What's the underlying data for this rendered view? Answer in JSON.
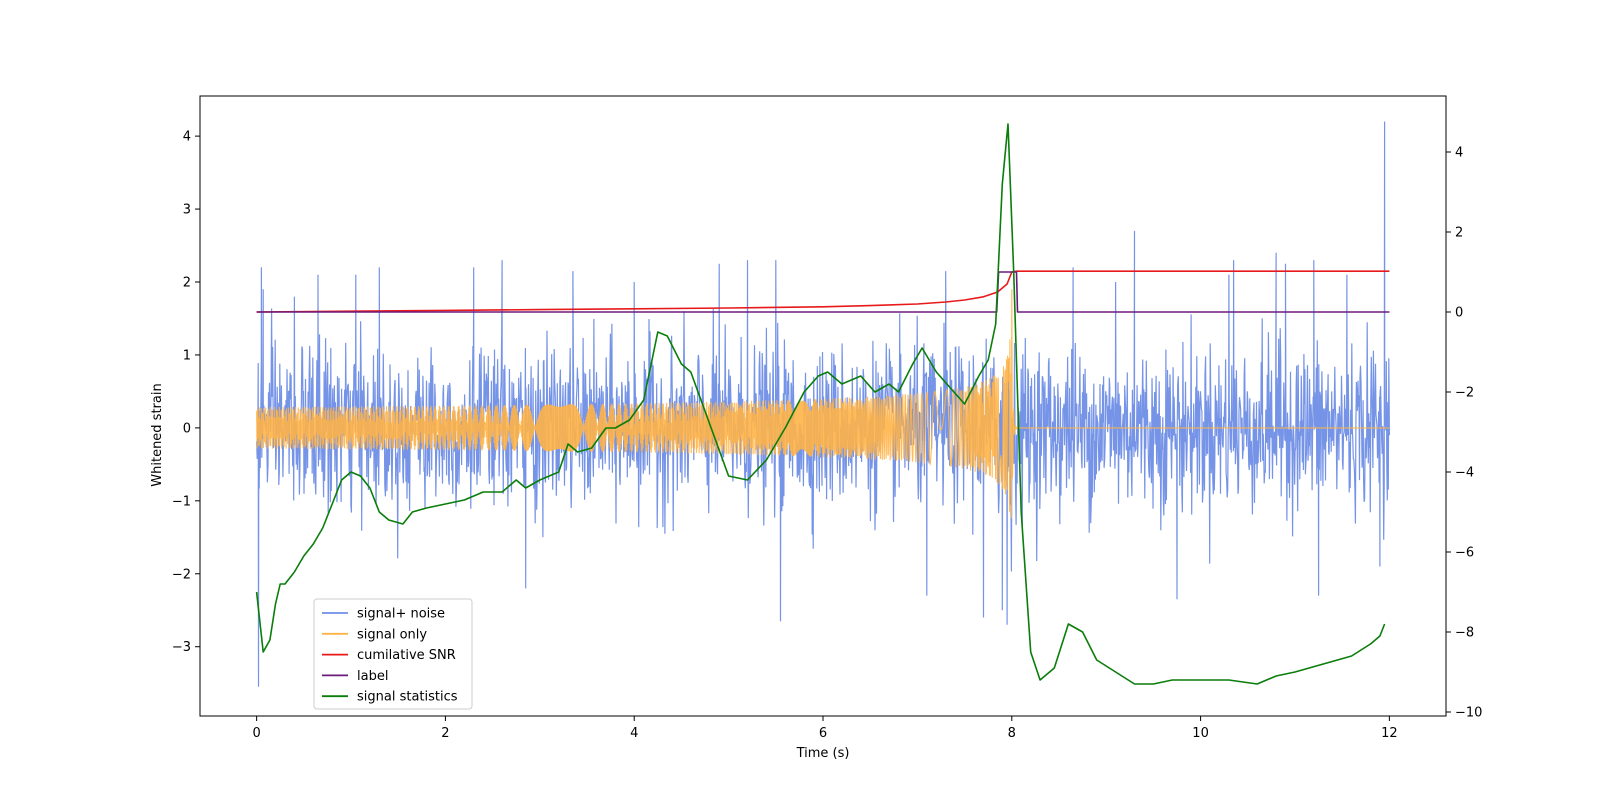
{
  "chart_data": {
    "type": "line",
    "title": "",
    "xlabel": "Time (s)",
    "ylabel": "Whitened strain",
    "y2label": "",
    "xlim": [
      -0.6,
      12.6
    ],
    "ylim": [
      -3.95,
      4.55
    ],
    "y2lim": [
      -10.1,
      5.4
    ],
    "x_ticks": [
      0,
      2,
      4,
      6,
      8,
      10,
      12
    ],
    "x_tick_labels": [
      "0",
      "2",
      "4",
      "6",
      "8",
      "10",
      "12"
    ],
    "y_ticks": [
      -3,
      -2,
      -1,
      0,
      1,
      2,
      3,
      4
    ],
    "y_tick_labels": [
      "−3",
      "−2",
      "−1",
      "0",
      "1",
      "2",
      "3",
      "4"
    ],
    "y2_ticks": [
      -10,
      -8,
      -6,
      -4,
      -2,
      0,
      2,
      4
    ],
    "y2_tick_labels": [
      "−10",
      "−8",
      "−6",
      "−4",
      "−2",
      "0",
      "2",
      "4"
    ],
    "grid": false,
    "legend_position": "lower-left",
    "series": [
      {
        "name": "signal+ noise",
        "axis": "left",
        "color": "#6f8ee6",
        "description_only": false,
        "noise": {
          "x_start": 0,
          "x_end": 12,
          "typical_peak": 1.6,
          "std": 0.55
        },
        "spikes": [
          {
            "x": 0.02,
            "y": -3.55
          },
          {
            "x": 0.05,
            "y": 2.2
          },
          {
            "x": 0.07,
            "y": 1.9
          },
          {
            "x": 0.4,
            "y": 1.8
          },
          {
            "x": 0.65,
            "y": 2.1
          },
          {
            "x": 1.05,
            "y": 2.1
          },
          {
            "x": 1.3,
            "y": 2.2
          },
          {
            "x": 2.3,
            "y": 2.2
          },
          {
            "x": 2.6,
            "y": 2.3
          },
          {
            "x": 2.85,
            "y": -2.2
          },
          {
            "x": 3.35,
            "y": 2.15
          },
          {
            "x": 4.0,
            "y": 2.0
          },
          {
            "x": 4.9,
            "y": 2.25
          },
          {
            "x": 5.2,
            "y": 2.3
          },
          {
            "x": 5.5,
            "y": 2.3
          },
          {
            "x": 5.55,
            "y": -2.65
          },
          {
            "x": 7.3,
            "y": 2.15
          },
          {
            "x": 7.1,
            "y": -2.3
          },
          {
            "x": 7.7,
            "y": -2.6
          },
          {
            "x": 7.9,
            "y": -2.5
          },
          {
            "x": 7.95,
            "y": -2.7
          },
          {
            "x": 8.65,
            "y": 2.2
          },
          {
            "x": 9.1,
            "y": 2.0
          },
          {
            "x": 9.3,
            "y": 2.7
          },
          {
            "x": 9.75,
            "y": -2.35
          },
          {
            "x": 10.3,
            "y": 2.1
          },
          {
            "x": 10.35,
            "y": 2.3
          },
          {
            "x": 10.8,
            "y": 2.4
          },
          {
            "x": 10.9,
            "y": 2.25
          },
          {
            "x": 11.2,
            "y": 2.3
          },
          {
            "x": 11.25,
            "y": -2.3
          },
          {
            "x": 11.55,
            "y": 2.1
          },
          {
            "x": 11.95,
            "y": 4.2
          },
          {
            "x": 11.9,
            "y": -1.9
          }
        ]
      },
      {
        "name": "signal only",
        "axis": "left",
        "color": "#ffb347",
        "chirp": {
          "x_start": 0,
          "x_merge": 8.0,
          "x_end": 12,
          "peak_amplitude": 1.9
        }
      },
      {
        "name": "cumilative SNR",
        "axis": "right",
        "color": "#e8191a",
        "x": [
          0,
          1,
          2,
          3,
          4,
          5,
          6,
          6.5,
          7,
          7.3,
          7.5,
          7.7,
          7.85,
          7.95,
          8.0,
          8.05,
          9,
          10,
          11,
          12
        ],
        "y": [
          0.0,
          0.02,
          0.04,
          0.06,
          0.08,
          0.1,
          0.13,
          0.16,
          0.2,
          0.25,
          0.3,
          0.38,
          0.5,
          0.7,
          1.0,
          1.02,
          1.02,
          1.02,
          1.02,
          1.02
        ]
      },
      {
        "name": "label",
        "axis": "right",
        "color": "#6a1b7a",
        "x": [
          0,
          7.84,
          7.86,
          8.05,
          8.06,
          12
        ],
        "y": [
          0,
          0,
          1.0,
          1.0,
          0,
          0
        ]
      },
      {
        "name": "signal statistics",
        "axis": "right",
        "color": "#0a7d0a",
        "x": [
          0.0,
          0.07,
          0.14,
          0.2,
          0.25,
          0.3,
          0.4,
          0.5,
          0.6,
          0.7,
          0.8,
          0.9,
          1.0,
          1.1,
          1.2,
          1.3,
          1.4,
          1.55,
          1.65,
          1.8,
          2.0,
          2.2,
          2.4,
          2.6,
          2.75,
          2.85,
          3.0,
          3.2,
          3.3,
          3.4,
          3.55,
          3.7,
          3.8,
          3.95,
          4.1,
          4.25,
          4.35,
          4.5,
          4.6,
          4.8,
          5.0,
          5.2,
          5.4,
          5.6,
          5.8,
          5.95,
          6.05,
          6.2,
          6.4,
          6.55,
          6.7,
          6.8,
          6.95,
          7.05,
          7.2,
          7.35,
          7.5,
          7.65,
          7.75,
          7.83,
          7.9,
          7.96,
          8.02,
          8.1,
          8.2,
          8.3,
          8.45,
          8.6,
          8.75,
          8.9,
          9.1,
          9.3,
          9.5,
          9.7,
          10.0,
          10.3,
          10.6,
          10.8,
          11.0,
          11.3,
          11.6,
          11.8,
          11.9,
          11.95
        ],
        "y": [
          -7.0,
          -8.5,
          -8.2,
          -7.3,
          -6.8,
          -6.8,
          -6.5,
          -6.1,
          -5.8,
          -5.4,
          -4.8,
          -4.2,
          -4.0,
          -4.1,
          -4.4,
          -5.0,
          -5.2,
          -5.3,
          -5.0,
          -4.9,
          -4.8,
          -4.7,
          -4.5,
          -4.5,
          -4.2,
          -4.4,
          -4.2,
          -4.0,
          -3.3,
          -3.5,
          -3.4,
          -2.9,
          -2.9,
          -2.7,
          -2.2,
          -0.5,
          -0.6,
          -1.3,
          -1.5,
          -2.8,
          -4.1,
          -4.2,
          -3.7,
          -2.9,
          -2.0,
          -1.6,
          -1.5,
          -1.8,
          -1.6,
          -2.0,
          -1.8,
          -2.0,
          -1.3,
          -0.9,
          -1.5,
          -1.9,
          -2.3,
          -1.6,
          -1.2,
          -0.3,
          3.2,
          4.7,
          1.0,
          -5.0,
          -8.5,
          -9.2,
          -8.9,
          -7.8,
          -8.0,
          -8.7,
          -9.0,
          -9.3,
          -9.3,
          -9.2,
          -9.2,
          -9.2,
          -9.3,
          -9.1,
          -9.0,
          -8.8,
          -8.6,
          -8.3,
          -8.1,
          -7.8
        ]
      }
    ]
  }
}
